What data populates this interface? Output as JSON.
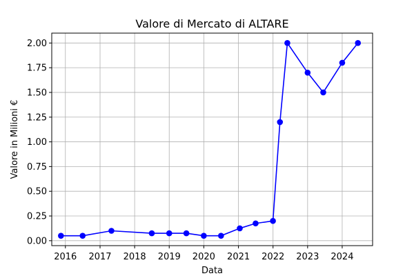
{
  "chart_data": {
    "type": "line",
    "title": "Valore di Mercato di ALTARE",
    "xlabel": "Data",
    "ylabel": "Valore in Milioni €",
    "x_axis": "date",
    "xlim": [
      "2015-08-10",
      "2024-11-17"
    ],
    "ylim": [
      -0.05,
      2.1
    ],
    "xticks": [
      "2016",
      "2017",
      "2018",
      "2019",
      "2020",
      "2021",
      "2022",
      "2023",
      "2024"
    ],
    "yticks": [
      "0.00",
      "0.25",
      "0.50",
      "0.75",
      "1.00",
      "1.25",
      "1.50",
      "1.75",
      "2.00"
    ],
    "grid": true,
    "line_color": "#0000ff",
    "marker": "circle",
    "series": [
      {
        "name": "",
        "points": [
          {
            "x": "2015-11-15",
            "y": 0.05
          },
          {
            "x": "2016-07-01",
            "y": 0.05
          },
          {
            "x": "2017-05-01",
            "y": 0.1
          },
          {
            "x": "2018-07-01",
            "y": 0.075
          },
          {
            "x": "2019-01-01",
            "y": 0.075
          },
          {
            "x": "2019-07-01",
            "y": 0.075
          },
          {
            "x": "2020-01-01",
            "y": 0.05
          },
          {
            "x": "2020-07-01",
            "y": 0.05
          },
          {
            "x": "2021-01-15",
            "y": 0.125
          },
          {
            "x": "2021-07-01",
            "y": 0.175
          },
          {
            "x": "2021-12-31",
            "y": 0.2
          },
          {
            "x": "2022-03-15",
            "y": 1.2
          },
          {
            "x": "2022-06-01",
            "y": 2.0
          },
          {
            "x": "2023-01-01",
            "y": 1.7
          },
          {
            "x": "2023-06-15",
            "y": 1.5
          },
          {
            "x": "2024-01-01",
            "y": 1.8
          },
          {
            "x": "2024-06-15",
            "y": 2.0
          }
        ]
      }
    ]
  }
}
